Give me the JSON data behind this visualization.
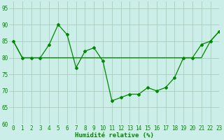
{
  "title": "",
  "xlabel": "Humidité relative (%)",
  "ylabel": "",
  "background_color": "#cceee8",
  "grid_color": "#aaccbb",
  "line_color": "#008800",
  "xlim": [
    -0.5,
    23
  ],
  "ylim": [
    60,
    97
  ],
  "yticks": [
    60,
    65,
    70,
    75,
    80,
    85,
    90,
    95
  ],
  "xticks": [
    0,
    1,
    2,
    3,
    4,
    5,
    6,
    7,
    8,
    9,
    10,
    11,
    12,
    13,
    14,
    15,
    16,
    17,
    18,
    19,
    20,
    21,
    22,
    23
  ],
  "curve1_x": [
    0,
    1,
    2,
    3,
    4,
    5,
    6,
    7,
    8,
    9,
    10,
    11,
    12,
    13,
    14,
    15,
    16,
    17,
    18,
    19,
    20,
    21,
    22,
    23
  ],
  "curve1_y": [
    85,
    80,
    80,
    80,
    84,
    90,
    87,
    77,
    82,
    83,
    79,
    67,
    68,
    69,
    69,
    71,
    70,
    71,
    74,
    80,
    80,
    84,
    85,
    88
  ],
  "curve2_x": [
    0,
    1,
    2,
    3,
    4,
    5,
    6,
    7,
    8,
    9,
    10,
    11,
    12,
    13,
    14,
    15,
    16,
    17,
    18,
    19,
    20,
    21,
    22,
    23
  ],
  "curve2_y": [
    85,
    80,
    80,
    80,
    80,
    80,
    80,
    80,
    80,
    80,
    80,
    80,
    80,
    80,
    80,
    80,
    80,
    80,
    80,
    80,
    80,
    80,
    85,
    88
  ],
  "marker": "D",
  "markersize": 2.0,
  "linewidth": 0.9,
  "tick_fontsize": 5.5,
  "xlabel_fontsize": 6.5
}
